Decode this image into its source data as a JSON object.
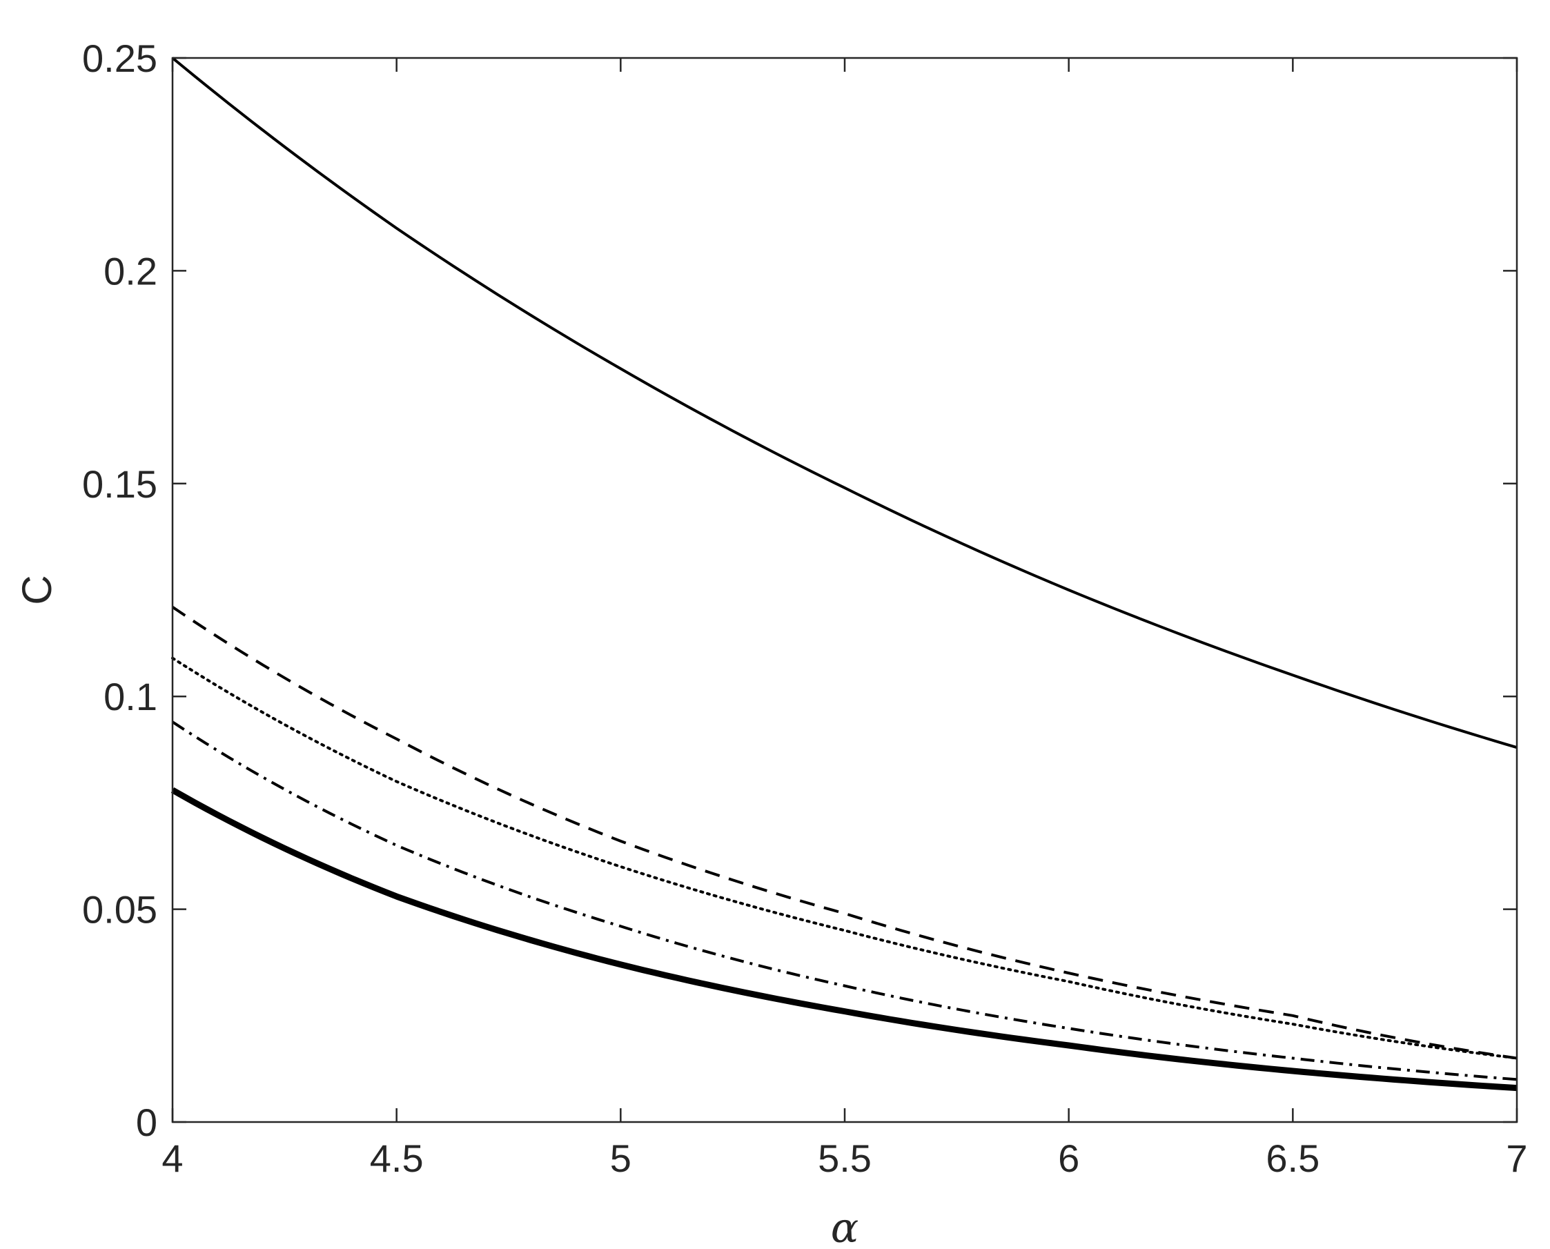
{
  "chart_data": {
    "type": "line",
    "title": "",
    "xlabel": "α",
    "ylabel": "C",
    "xlim": [
      4,
      7
    ],
    "ylim": [
      0,
      0.25
    ],
    "grid": false,
    "box": true,
    "xticks": [
      4,
      4.5,
      5,
      5.5,
      6,
      6.5,
      7
    ],
    "xtick_labels": [
      "4",
      "4.5",
      "5",
      "5.5",
      "6",
      "6.5",
      "7"
    ],
    "yticks": [
      0,
      0.05,
      0.1,
      0.15,
      0.2,
      0.25
    ],
    "ytick_labels": [
      "0",
      "0.05",
      "0.1",
      "0.15",
      "0.2",
      "0.25"
    ],
    "x": [
      4,
      4.5,
      5,
      5.5,
      6,
      6.5,
      7
    ],
    "series": [
      {
        "style": "solid",
        "width": "normal",
        "values": [
          0.25,
          0.21,
          0.177,
          0.149,
          0.125,
          0.105,
          0.088
        ]
      },
      {
        "style": "dashed",
        "width": "normal",
        "values": [
          0.121,
          0.09,
          0.066,
          0.049,
          0.035,
          0.025,
          0.015
        ]
      },
      {
        "style": "dotted",
        "width": "normal",
        "values": [
          0.109,
          0.08,
          0.06,
          0.045,
          0.033,
          0.023,
          0.015
        ]
      },
      {
        "style": "dashdot",
        "width": "normal",
        "values": [
          0.094,
          0.065,
          0.046,
          0.032,
          0.022,
          0.015,
          0.01
        ]
      },
      {
        "style": "solid",
        "width": "thick",
        "values": [
          0.078,
          0.053,
          0.037,
          0.026,
          0.018,
          0.012,
          0.008
        ]
      }
    ]
  }
}
